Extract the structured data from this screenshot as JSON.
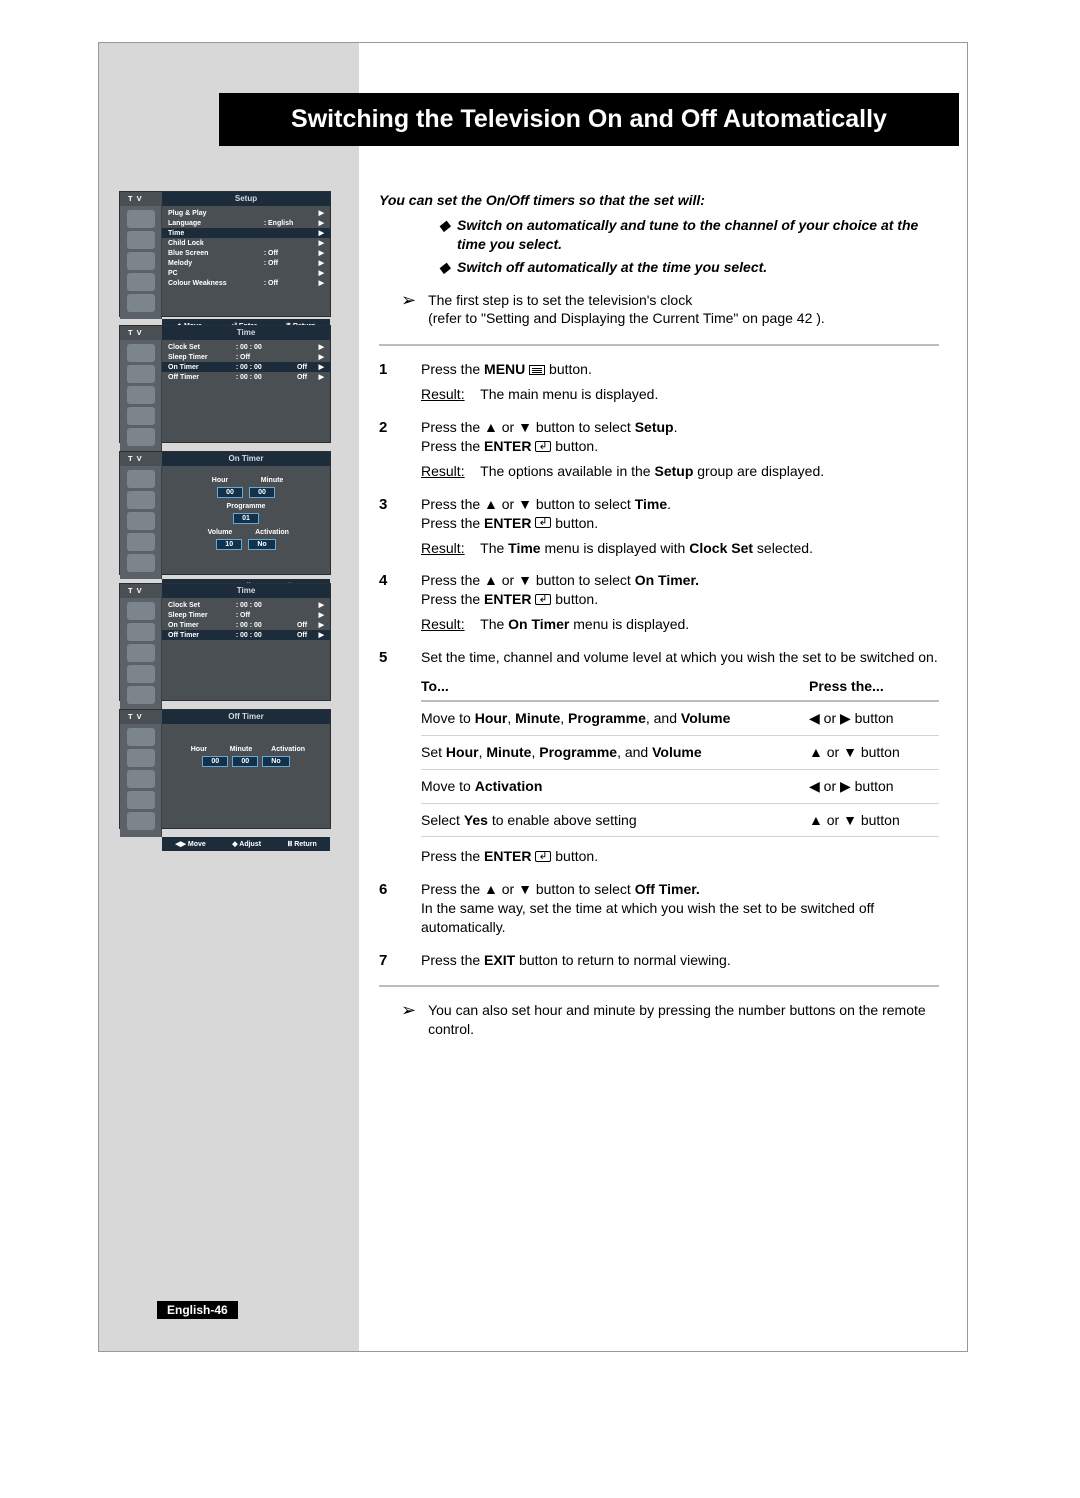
{
  "colors": {
    "page_border": "#999999",
    "sidebar": "#d8d8d8",
    "title_bg": "#000000",
    "title_fg": "#ffffff",
    "osd_bg": "#4a4f54",
    "osd_head": "#1d2c3b",
    "hr": "#bcbcbc"
  },
  "title": "Switching the Television On and Off Automatically",
  "page_number": "English-46",
  "osd": {
    "tv_label": "T V",
    "foot_move": "Move",
    "foot_enter": "Enter",
    "foot_return": "Return",
    "foot_adjust": "Adjust",
    "setup": {
      "header": "Setup",
      "rows": [
        {
          "label": "Plug & Play",
          "colon": "",
          "val": "",
          "arrow": "▶"
        },
        {
          "label": "Language",
          "colon": ":",
          "val": "English",
          "arrow": "▶"
        },
        {
          "label": "Time",
          "colon": "",
          "val": "",
          "arrow": "▶",
          "hl": true
        },
        {
          "label": "Child Lock",
          "colon": "",
          "val": "",
          "arrow": "▶"
        },
        {
          "label": "Blue Screen",
          "colon": ":",
          "val": "Off",
          "arrow": "▶"
        },
        {
          "label": "Melody",
          "colon": ":",
          "val": "Off",
          "arrow": "▶"
        },
        {
          "label": "PC",
          "colon": "",
          "val": "",
          "arrow": "▶"
        },
        {
          "label": "Colour Weakness",
          "colon": ":",
          "val": "Off",
          "arrow": "▶"
        }
      ]
    },
    "time1": {
      "header": "Time",
      "rows": [
        {
          "label": "Clock Set",
          "colon": ":",
          "val": "00 : 00",
          "val2": "",
          "arrow": "▶"
        },
        {
          "label": "Sleep Timer",
          "colon": ":",
          "val": "Off",
          "val2": "",
          "arrow": "▶"
        },
        {
          "label": "On Timer",
          "colon": ":",
          "val": "00 : 00",
          "val2": "Off",
          "arrow": "▶",
          "hl": true
        },
        {
          "label": "Off Timer",
          "colon": ":",
          "val": "00 : 00",
          "val2": "Off",
          "arrow": "▶"
        }
      ]
    },
    "ontimer": {
      "header": "On Timer",
      "hour_label": "Hour",
      "minute_label": "Minute",
      "hour": "00",
      "minute": "00",
      "programme_label": "Programme",
      "programme": "01",
      "volume_label": "Volume",
      "activation_label": "Activation",
      "volume": "10",
      "activation": "No"
    },
    "time2": {
      "header": "Time",
      "rows": [
        {
          "label": "Clock Set",
          "colon": ":",
          "val": "00 : 00",
          "val2": "",
          "arrow": "▶"
        },
        {
          "label": "Sleep Timer",
          "colon": ":",
          "val": "Off",
          "val2": "",
          "arrow": "▶"
        },
        {
          "label": "On Timer",
          "colon": ":",
          "val": "00 : 00",
          "val2": "Off",
          "arrow": "▶"
        },
        {
          "label": "Off Timer",
          "colon": ":",
          "val": "00 : 00",
          "val2": "Off",
          "arrow": "▶",
          "hl": true
        }
      ]
    },
    "offtimer": {
      "header": "Off Timer",
      "hour_label": "Hour",
      "minute_label": "Minute",
      "activation_label": "Activation",
      "hour": "00",
      "minute": "00",
      "activation": "No"
    }
  },
  "intro": "You can set the On/Off timers so that the set will:",
  "bullets": [
    "Switch on automatically and tune to the channel of your choice at the time you select.",
    "Switch off automatically at the time you select."
  ],
  "note1_a": "The first step is to set the television's clock",
  "note1_b": "(refer to \"Setting and Displaying the Current Time\" on page 42 ).",
  "steps": {
    "s1": {
      "n": "1",
      "a": "Press the ",
      "b": "MENU",
      "c": " button.",
      "r": "Result",
      "rt": "The main menu is displayed."
    },
    "s2": {
      "n": "2",
      "a": "Press the ▲ or ▼ button to select ",
      "b": "Setup",
      "c": ".",
      "d": "Press the ",
      "e": "ENTER",
      "f": " button.",
      "r": "Result",
      "rt1": "The options available in the ",
      "rt2": "Setup",
      "rt3": " group are displayed."
    },
    "s3": {
      "n": "3",
      "a": "Press the ▲ or ▼ button to select ",
      "b": "Time",
      "c": ".",
      "d": "Press the ",
      "e": "ENTER",
      "f": " button.",
      "r": "Result",
      "rt1": "The ",
      "rt2": "Time",
      "rt3": " menu is displayed with ",
      "rt4": "Clock Set",
      "rt5": " selected."
    },
    "s4": {
      "n": "4",
      "a": "Press the ▲ or ▼ button to select ",
      "b": "On Timer.",
      "d": "Press the ",
      "e": "ENTER",
      "f": " button.",
      "r": "Result",
      "rt1": "The ",
      "rt2": "On Timer",
      "rt3": " menu is displayed."
    },
    "s5": {
      "n": "5",
      "a": "Set the time, channel and volume level at which you wish the set to be switched on."
    },
    "s6": {
      "n": "6",
      "a": "Press the ▲ or ▼ button to select ",
      "b": "Off Timer.",
      "c": "In the same way, set the time at which you wish the set to be switched off automatically."
    },
    "s7": {
      "n": "7",
      "a": "Press the ",
      "b": "EXIT",
      "c": " button to return to normal viewing."
    }
  },
  "table": {
    "h1": "To...",
    "h2": "Press the...",
    "rows": [
      {
        "c1a": "Move to ",
        "c1b": "Hour",
        "c1c": ", ",
        "c1d": "Minute",
        "c1e": ", ",
        "c1f": "Programme",
        "c1g": ", and ",
        "c1h": "Volume",
        "c2": "◀ or ▶ button"
      },
      {
        "c1a": "Set ",
        "c1b": "Hour",
        "c1c": ", ",
        "c1d": "Minute",
        "c1e": ", ",
        "c1f": "Programme",
        "c1g": ", and ",
        "c1h": "Volume",
        "c2": "▲ or ▼ button"
      },
      {
        "c1a": "Move to ",
        "c1b": "Activation",
        "c2": "◀ or ▶ button"
      },
      {
        "c1a": "Select ",
        "c1b": "Yes",
        "c1c": " to enable above setting",
        "c2": "▲ or ▼ button"
      }
    ],
    "after_a": "Press the ",
    "after_b": "ENTER",
    "after_c": " button."
  },
  "note2": "You can also set hour and minute by pressing the number buttons on the remote control."
}
